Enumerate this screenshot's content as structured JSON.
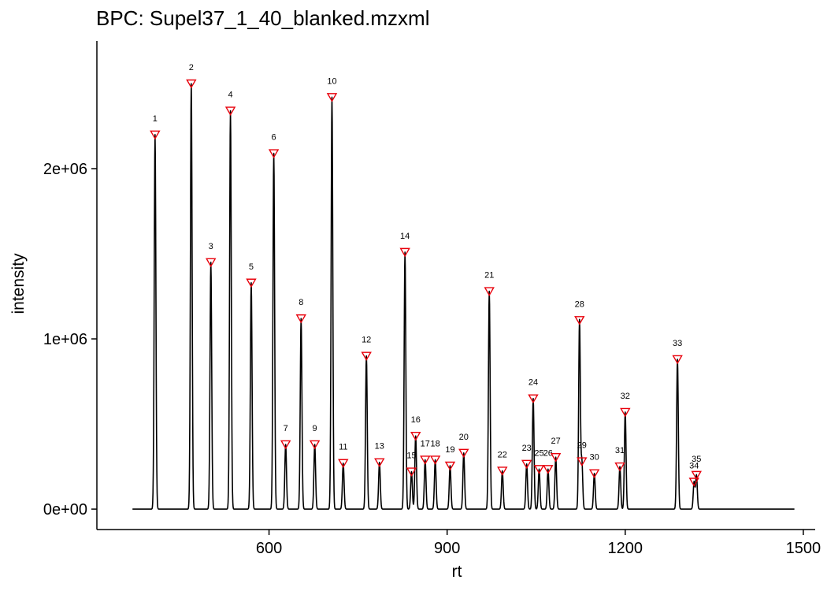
{
  "chart_data": {
    "type": "line",
    "title": "BPC: Supel37_1_40_blanked.mzxml",
    "xlabel": "rt",
    "ylabel": "intensity",
    "xlim": [
      310,
      1520
    ],
    "ylim": [
      -120000,
      2750000
    ],
    "x_ticks": [
      600,
      900,
      1200,
      1500
    ],
    "x_tick_labels": [
      "600",
      "900",
      "1200",
      "1500"
    ],
    "y_ticks": [
      0,
      1000000,
      2000000
    ],
    "y_tick_labels": [
      "0e+00",
      "1e+06",
      "2e+06"
    ],
    "grid": false,
    "trace_range": [
      370,
      1485
    ],
    "colors": {
      "line": "#000000",
      "marker": "#e8000b",
      "axis": "#000000"
    },
    "peaks": [
      {
        "label": "1",
        "rt": 408,
        "intensity": 2200000
      },
      {
        "label": "2",
        "rt": 469,
        "intensity": 2500000
      },
      {
        "label": "3",
        "rt": 502,
        "intensity": 1450000
      },
      {
        "label": "4",
        "rt": 535,
        "intensity": 2340000
      },
      {
        "label": "5",
        "rt": 570,
        "intensity": 1330000
      },
      {
        "label": "6",
        "rt": 608,
        "intensity": 2090000
      },
      {
        "label": "7",
        "rt": 628,
        "intensity": 380000
      },
      {
        "label": "8",
        "rt": 654,
        "intensity": 1120000
      },
      {
        "label": "9",
        "rt": 677,
        "intensity": 380000
      },
      {
        "label": "10",
        "rt": 706,
        "intensity": 2420000
      },
      {
        "label": "11",
        "rt": 725,
        "intensity": 270000
      },
      {
        "label": "12",
        "rt": 764,
        "intensity": 900000
      },
      {
        "label": "13",
        "rt": 786,
        "intensity": 275000
      },
      {
        "label": "14",
        "rt": 829,
        "intensity": 1510000
      },
      {
        "label": "15",
        "rt": 840,
        "intensity": 220000
      },
      {
        "label": "16",
        "rt": 847,
        "intensity": 430000
      },
      {
        "label": "17",
        "rt": 863,
        "intensity": 290000
      },
      {
        "label": "18",
        "rt": 880,
        "intensity": 290000
      },
      {
        "label": "19",
        "rt": 905,
        "intensity": 255000
      },
      {
        "label": "20",
        "rt": 928,
        "intensity": 330000
      },
      {
        "label": "21",
        "rt": 971,
        "intensity": 1280000
      },
      {
        "label": "22",
        "rt": 993,
        "intensity": 225000
      },
      {
        "label": "23",
        "rt": 1034,
        "intensity": 265000
      },
      {
        "label": "24",
        "rt": 1045,
        "intensity": 650000
      },
      {
        "label": "25",
        "rt": 1055,
        "intensity": 235000
      },
      {
        "label": "26",
        "rt": 1070,
        "intensity": 235000
      },
      {
        "label": "27",
        "rt": 1083,
        "intensity": 305000
      },
      {
        "label": "28",
        "rt": 1123,
        "intensity": 1110000
      },
      {
        "label": "29",
        "rt": 1127,
        "intensity": 280000
      },
      {
        "label": "30",
        "rt": 1148,
        "intensity": 210000
      },
      {
        "label": "31",
        "rt": 1191,
        "intensity": 250000
      },
      {
        "label": "32",
        "rt": 1200,
        "intensity": 570000
      },
      {
        "label": "33",
        "rt": 1288,
        "intensity": 880000
      },
      {
        "label": "34",
        "rt": 1316,
        "intensity": 160000
      },
      {
        "label": "35",
        "rt": 1320,
        "intensity": 200000
      }
    ]
  }
}
